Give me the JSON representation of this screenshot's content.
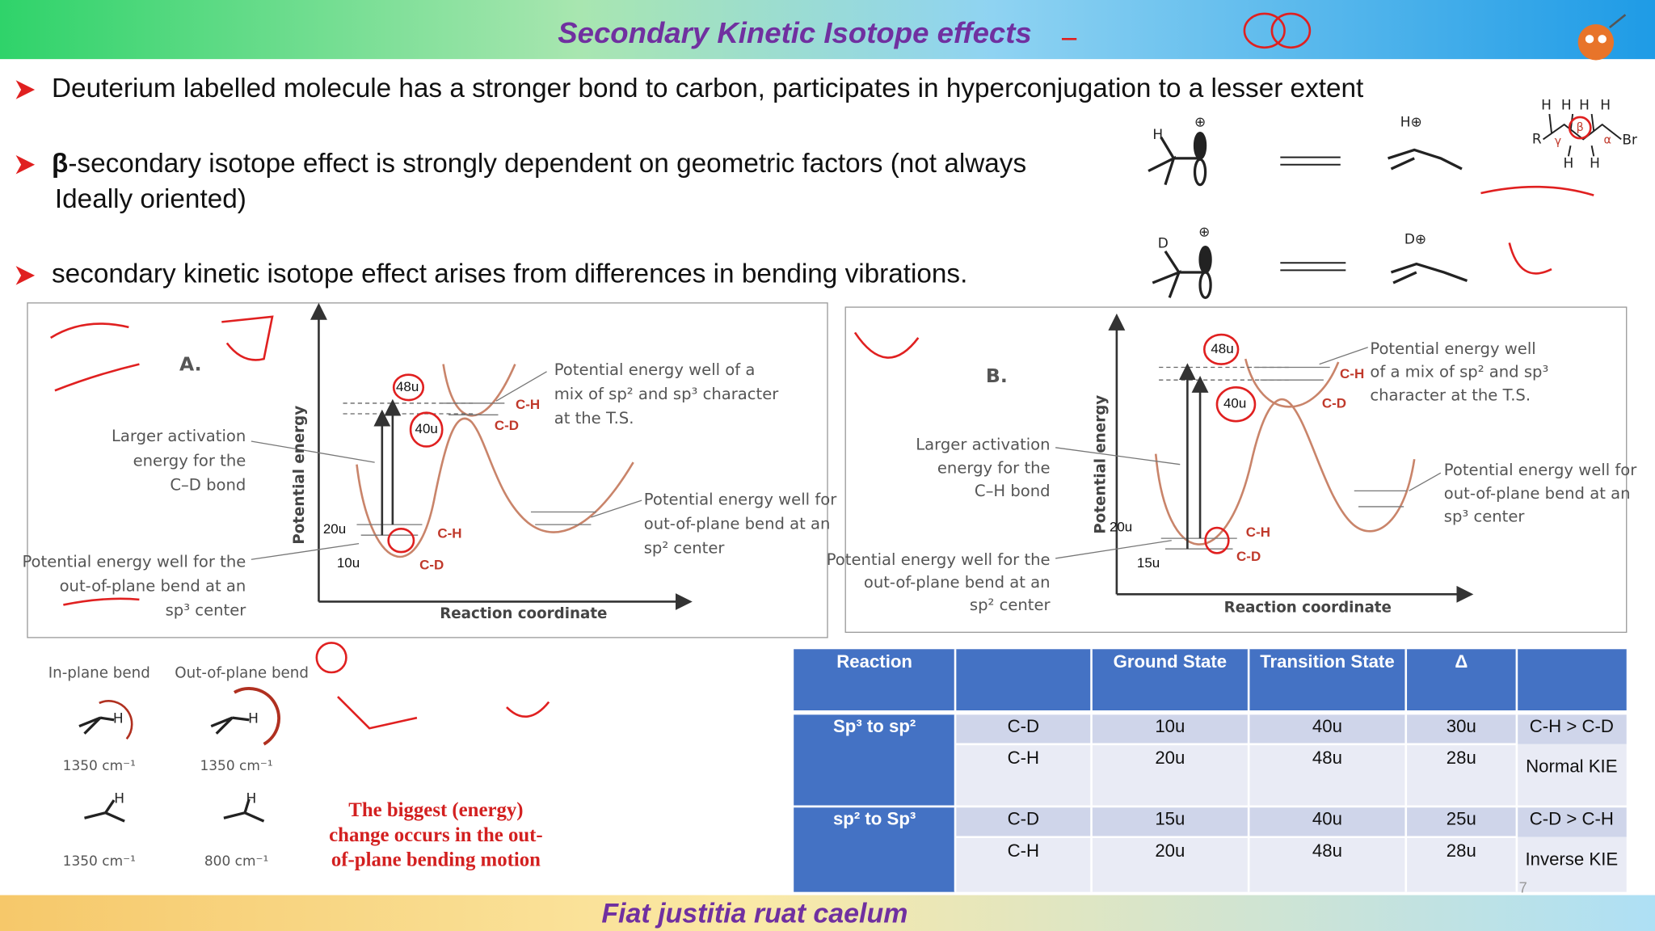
{
  "header": {
    "title": "Secondary Kinetic Isotope effects"
  },
  "bullets": [
    {
      "text": "Deuterium labelled molecule has a stronger bond to carbon, participates in hyperconjugation to a lesser extent"
    },
    {
      "bold": "β",
      "text": "-secondary isotope effect is strongly dependent on geometric factors (not always",
      "continuation": "Ideally oriented)"
    },
    {
      "text": "secondary kinetic isotope effect arises from differences in bending vibrations."
    }
  ],
  "structures": {
    "cation_h": [
      "H",
      "⊕",
      "H⊕"
    ],
    "cation_d": [
      "D",
      "⊕",
      "D⊕"
    ],
    "chain": [
      "H",
      "H",
      "H",
      "H",
      "R",
      "γ",
      "β",
      "α",
      "Br",
      "H",
      "H"
    ]
  },
  "figure_a": {
    "label": "A.",
    "y_axis": "Potential energy",
    "x_axis": "Reaction coordinate",
    "ts_well": [
      "Potential energy well of a",
      "mix of sp² and sp³ character",
      "at the T.S."
    ],
    "activation": [
      "Larger activation",
      "energy for the",
      "C–D bond"
    ],
    "product_well": [
      "Potential energy well for",
      "out-of-plane bend at an",
      "sp² center"
    ],
    "reactant_well": [
      "Potential energy well for the",
      "out-of-plane bend at an",
      "sp³ center"
    ],
    "levels": [
      "48u",
      "40u",
      "20u",
      "10u"
    ],
    "bonds": [
      "C-H",
      "C-D",
      "C-H",
      "C-D"
    ]
  },
  "figure_b": {
    "label": "B.",
    "y_axis": "Potential energy",
    "x_axis": "Reaction coordinate",
    "ts_well": [
      "Potential energy well",
      "of a mix of sp² and sp³",
      "character at the T.S."
    ],
    "activation": [
      "Larger activation",
      "energy for the",
      "C–H bond"
    ],
    "product_well": [
      "Potential energy well for",
      "out-of-plane bend at an",
      "sp³ center"
    ],
    "reactant_well": [
      "Potential energy well for the",
      "out-of-plane bend at an",
      "sp² center"
    ],
    "levels": [
      "48u",
      "40u",
      "20u",
      "15u"
    ],
    "bonds": [
      "C-H",
      "C-D",
      "C-H",
      "C-D"
    ]
  },
  "bends": {
    "in_plane": "In-plane bend",
    "out_of_plane": "Out-of-plane bend",
    "frequencies": [
      "1350 cm⁻¹",
      "1350 cm⁻¹",
      "1350 cm⁻¹",
      "800 cm⁻¹"
    ],
    "atoms": [
      "H",
      "H",
      "H",
      "H"
    ]
  },
  "note": [
    "The biggest (energy)",
    "change occurs in the out-",
    "of-plane bending motion"
  ],
  "table": {
    "header": {
      "reaction": "Reaction",
      "ground": "Ground State",
      "transition": "Transition State",
      "delta": "Δ"
    },
    "groups": [
      {
        "reaction": "Sp³ to sp²",
        "rows": [
          [
            "C-D",
            "10u",
            "40u",
            "30u"
          ],
          [
            "C-H",
            "20u",
            "48u",
            "28u"
          ]
        ],
        "result": [
          "C-H > C-D",
          "Normal KIE"
        ]
      },
      {
        "reaction": "sp² to Sp³",
        "rows": [
          [
            "C-D",
            "15u",
            "40u",
            "25u"
          ],
          [
            "C-H",
            "20u",
            "48u",
            "28u"
          ]
        ],
        "result": [
          "C-D > C-H",
          "Inverse KIE"
        ]
      }
    ]
  },
  "page_number": "7",
  "footer": {
    "motto": "Fiat justitia ruat caelum"
  }
}
